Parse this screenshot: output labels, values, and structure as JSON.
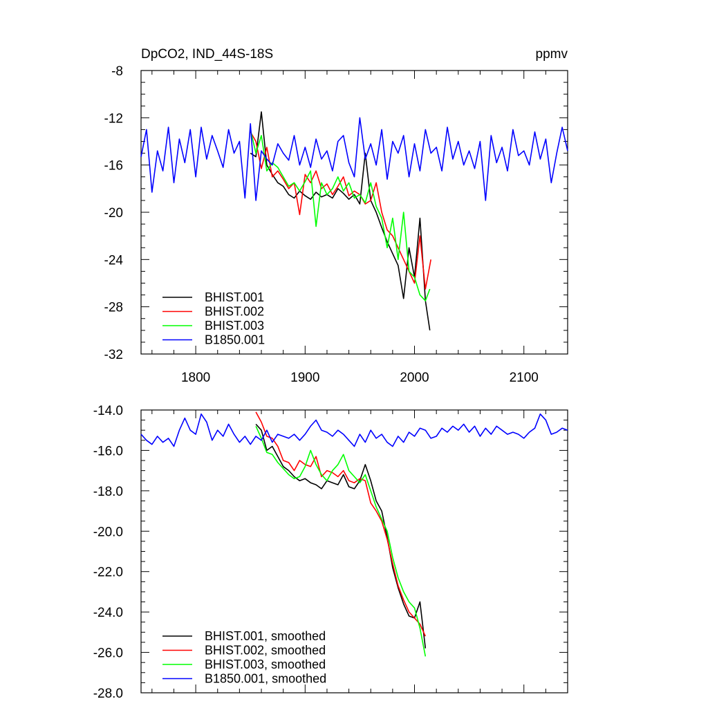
{
  "header": {
    "title": "DpCO2, IND_44S-18S",
    "units": "ppmv"
  },
  "chart_data": [
    {
      "type": "line",
      "title": "DpCO2, IND_44S-18S",
      "units": "ppmv",
      "xlim": [
        1750,
        2140
      ],
      "ylim": [
        -32,
        -8
      ],
      "yticks": [
        -8,
        -12,
        -16,
        -20,
        -24,
        -28,
        -32
      ],
      "ytick_labels": [
        "-8",
        "-12",
        "-16",
        "-20",
        "-24",
        "-28",
        "-32"
      ],
      "xticks": [
        1800,
        1900,
        2000,
        2100
      ],
      "xtick_labels": [
        "1800",
        "1900",
        "2000",
        "2100"
      ],
      "x_minor": 20,
      "y_minor": 1,
      "legend_position": "bottom-left",
      "series": [
        {
          "name": "BHIST.001",
          "color": "#000000",
          "x": [
            1850,
            1855,
            1860,
            1865,
            1870,
            1875,
            1880,
            1885,
            1890,
            1895,
            1900,
            1905,
            1910,
            1915,
            1920,
            1925,
            1930,
            1935,
            1940,
            1945,
            1950,
            1955,
            1960,
            1965,
            1970,
            1975,
            1980,
            1985,
            1990,
            1995,
            2000,
            2005,
            2010,
            2014
          ],
          "y": [
            -15.0,
            -15.3,
            -11.5,
            -16.0,
            -16.8,
            -17.5,
            -17.8,
            -18.5,
            -18.8,
            -18.2,
            -18.6,
            -18.9,
            -18.3,
            -18.7,
            -18.5,
            -18.8,
            -18.0,
            -18.4,
            -18.9,
            -18.5,
            -19.3,
            -15.0,
            -19.0,
            -20.0,
            -21.3,
            -22.5,
            -23.5,
            -24.5,
            -27.3,
            -23.0,
            -25.5,
            -20.5,
            -27.5,
            -30.0
          ]
        },
        {
          "name": "BHIST.002",
          "color": "#ff0000",
          "x": [
            1850,
            1855,
            1860,
            1865,
            1870,
            1875,
            1880,
            1885,
            1890,
            1895,
            1900,
            1905,
            1910,
            1915,
            1920,
            1925,
            1930,
            1935,
            1940,
            1945,
            1950,
            1955,
            1960,
            1965,
            1970,
            1975,
            1980,
            1985,
            1990,
            1995,
            2000,
            2005,
            2010,
            2015
          ],
          "y": [
            -13.2,
            -14.0,
            -16.3,
            -14.5,
            -17.0,
            -16.5,
            -17.2,
            -18.0,
            -17.5,
            -20.2,
            -16.8,
            -17.5,
            -16.5,
            -18.0,
            -17.6,
            -18.5,
            -17.8,
            -17.0,
            -18.6,
            -18.2,
            -18.5,
            -19.3,
            -19.0,
            -17.5,
            -20.0,
            -21.5,
            -22.0,
            -23.0,
            -24.0,
            -25.0,
            -26.0,
            -22.0,
            -26.5,
            -24.0
          ]
        },
        {
          "name": "BHIST.003",
          "color": "#00ff00",
          "x": [
            1850,
            1855,
            1860,
            1865,
            1870,
            1875,
            1880,
            1885,
            1890,
            1895,
            1900,
            1905,
            1910,
            1915,
            1920,
            1925,
            1930,
            1935,
            1940,
            1945,
            1950,
            1955,
            1960,
            1965,
            1970,
            1975,
            1980,
            1985,
            1990,
            1995,
            2000,
            2005,
            2010,
            2014
          ],
          "y": [
            -13.0,
            -15.0,
            -13.5,
            -16.5,
            -15.8,
            -16.2,
            -17.0,
            -17.8,
            -17.5,
            -18.2,
            -17.4,
            -16.5,
            -21.2,
            -17.5,
            -18.5,
            -18.0,
            -17.0,
            -18.2,
            -17.5,
            -18.8,
            -18.5,
            -19.2,
            -17.5,
            -19.5,
            -20.5,
            -23.0,
            -20.5,
            -24.0,
            -20.0,
            -25.0,
            -25.5,
            -27.0,
            -27.5,
            -26.5
          ]
        },
        {
          "name": "B1850.001",
          "color": "#0000ff",
          "x": [
            1750,
            1755,
            1760,
            1765,
            1770,
            1775,
            1780,
            1785,
            1790,
            1795,
            1800,
            1805,
            1810,
            1815,
            1820,
            1825,
            1830,
            1835,
            1840,
            1845,
            1850,
            1855,
            1860,
            1865,
            1870,
            1875,
            1880,
            1885,
            1890,
            1895,
            1900,
            1905,
            1910,
            1915,
            1920,
            1925,
            1930,
            1935,
            1940,
            1945,
            1950,
            1955,
            1960,
            1965,
            1970,
            1975,
            1980,
            1985,
            1990,
            1995,
            2000,
            2005,
            2010,
            2015,
            2020,
            2025,
            2030,
            2035,
            2040,
            2045,
            2050,
            2055,
            2060,
            2065,
            2070,
            2075,
            2080,
            2085,
            2090,
            2095,
            2100,
            2105,
            2110,
            2115,
            2120,
            2125,
            2130,
            2135,
            2140
          ],
          "y": [
            -15.3,
            -13.0,
            -18.3,
            -14.8,
            -16.5,
            -12.8,
            -17.5,
            -13.8,
            -15.8,
            -13.0,
            -17.0,
            -12.8,
            -15.5,
            -13.5,
            -14.8,
            -16.2,
            -13.0,
            -15.0,
            -14.0,
            -18.8,
            -12.5,
            -19.0,
            -14.8,
            -15.5,
            -16.0,
            -14.2,
            -15.0,
            -15.6,
            -13.5,
            -16.0,
            -14.5,
            -16.2,
            -13.8,
            -15.5,
            -14.8,
            -16.5,
            -14.0,
            -13.5,
            -15.8,
            -17.0,
            -12.0,
            -15.5,
            -14.2,
            -16.0,
            -13.0,
            -17.2,
            -14.0,
            -15.0,
            -13.5,
            -17.0,
            -14.2,
            -16.5,
            -13.0,
            -15.0,
            -14.5,
            -16.5,
            -12.8,
            -15.5,
            -14.0,
            -16.0,
            -14.8,
            -16.3,
            -14.0,
            -19.0,
            -13.5,
            -15.8,
            -14.5,
            -16.5,
            -13.0,
            -15.2,
            -14.8,
            -16.0,
            -13.2,
            -15.5,
            -13.8,
            -17.5,
            -15.0,
            -12.8,
            -14.8
          ]
        }
      ]
    },
    {
      "type": "line",
      "title": "",
      "xlim": [
        1750,
        2140
      ],
      "ylim": [
        -28.0,
        -14.0
      ],
      "yticks": [
        -14.0,
        -16.0,
        -18.0,
        -20.0,
        -22.0,
        -24.0,
        -26.0,
        -28.0
      ],
      "ytick_labels": [
        "-14.0",
        "-16.0",
        "-18.0",
        "-20.0",
        "-22.0",
        "-24.0",
        "-26.0",
        "-28.0"
      ],
      "xticks": [
        1800,
        1900,
        2000,
        2100
      ],
      "x_minor": 20,
      "y_minor": 0.5,
      "legend_position": "bottom-left",
      "series": [
        {
          "name": "BHIST.001, smoothed",
          "color": "#000000",
          "x": [
            1855,
            1860,
            1865,
            1870,
            1875,
            1880,
            1885,
            1890,
            1895,
            1900,
            1905,
            1910,
            1915,
            1920,
            1925,
            1930,
            1935,
            1940,
            1945,
            1950,
            1955,
            1960,
            1965,
            1970,
            1975,
            1980,
            1985,
            1990,
            1995,
            2000,
            2005,
            2010
          ],
          "y": [
            -14.7,
            -15.0,
            -16.0,
            -15.8,
            -16.3,
            -16.8,
            -17.0,
            -17.3,
            -17.5,
            -17.4,
            -17.6,
            -17.7,
            -17.9,
            -17.5,
            -17.6,
            -17.7,
            -17.2,
            -17.8,
            -17.9,
            -17.5,
            -16.7,
            -17.5,
            -18.5,
            -19.0,
            -20.3,
            -21.8,
            -22.8,
            -23.6,
            -24.2,
            -24.3,
            -23.5,
            -25.8
          ]
        },
        {
          "name": "BHIST.002, smoothed",
          "color": "#ff0000",
          "x": [
            1855,
            1860,
            1865,
            1870,
            1875,
            1880,
            1885,
            1890,
            1895,
            1900,
            1905,
            1910,
            1915,
            1920,
            1925,
            1930,
            1935,
            1940,
            1945,
            1950,
            1955,
            1960,
            1965,
            1970,
            1975,
            1980,
            1985,
            1990,
            1995,
            2000,
            2005,
            2010
          ],
          "y": [
            -14.1,
            -14.6,
            -15.3,
            -15.4,
            -15.8,
            -16.5,
            -16.6,
            -17.0,
            -16.5,
            -16.7,
            -16.8,
            -16.3,
            -17.3,
            -17.0,
            -17.1,
            -17.3,
            -17.0,
            -17.5,
            -17.6,
            -17.4,
            -17.5,
            -18.6,
            -19.0,
            -19.5,
            -20.4,
            -21.6,
            -22.7,
            -23.4,
            -24.0,
            -24.3,
            -24.6,
            -25.2
          ]
        },
        {
          "name": "BHIST.003, smoothed",
          "color": "#00ff00",
          "x": [
            1855,
            1860,
            1865,
            1870,
            1875,
            1880,
            1885,
            1890,
            1895,
            1900,
            1905,
            1910,
            1915,
            1920,
            1925,
            1930,
            1935,
            1940,
            1945,
            1950,
            1955,
            1960,
            1965,
            1970,
            1975,
            1980,
            1985,
            1990,
            1995,
            2000,
            2005,
            2010
          ],
          "y": [
            -14.8,
            -15.4,
            -16.1,
            -16.2,
            -16.6,
            -16.9,
            -17.2,
            -17.4,
            -17.3,
            -16.8,
            -16.0,
            -16.7,
            -17.2,
            -17.5,
            -17.0,
            -16.7,
            -16.2,
            -17.0,
            -17.3,
            -17.6,
            -17.2,
            -18.0,
            -18.8,
            -19.4,
            -20.0,
            -21.3,
            -22.3,
            -23.0,
            -23.5,
            -23.8,
            -24.8,
            -26.2
          ]
        },
        {
          "name": "B1850.001, smoothed",
          "color": "#0000ff",
          "x": [
            1750,
            1755,
            1760,
            1765,
            1770,
            1775,
            1780,
            1785,
            1790,
            1795,
            1800,
            1805,
            1810,
            1815,
            1820,
            1825,
            1830,
            1835,
            1840,
            1845,
            1850,
            1855,
            1860,
            1865,
            1870,
            1875,
            1880,
            1885,
            1890,
            1895,
            1900,
            1905,
            1910,
            1915,
            1920,
            1925,
            1930,
            1935,
            1940,
            1945,
            1950,
            1955,
            1960,
            1965,
            1970,
            1975,
            1980,
            1985,
            1990,
            1995,
            2000,
            2005,
            2010,
            2015,
            2020,
            2025,
            2030,
            2035,
            2040,
            2045,
            2050,
            2055,
            2060,
            2065,
            2070,
            2075,
            2080,
            2085,
            2090,
            2095,
            2100,
            2105,
            2110,
            2115,
            2120,
            2125,
            2130,
            2135,
            2140
          ],
          "y": [
            -15.2,
            -15.5,
            -15.7,
            -15.3,
            -15.6,
            -15.4,
            -15.8,
            -15.0,
            -14.4,
            -15.0,
            -15.2,
            -14.2,
            -14.6,
            -15.5,
            -15.0,
            -15.3,
            -14.7,
            -15.2,
            -15.6,
            -15.3,
            -15.7,
            -15.3,
            -15.5,
            -15.0,
            -15.6,
            -15.2,
            -15.3,
            -15.4,
            -15.2,
            -15.5,
            -15.2,
            -14.8,
            -14.5,
            -15.0,
            -15.1,
            -15.3,
            -15.0,
            -15.2,
            -15.5,
            -15.8,
            -15.2,
            -15.6,
            -15.0,
            -15.4,
            -15.2,
            -15.6,
            -15.8,
            -15.3,
            -15.6,
            -15.1,
            -15.3,
            -14.9,
            -15.0,
            -15.4,
            -15.3,
            -14.9,
            -15.1,
            -14.8,
            -15.0,
            -14.7,
            -15.1,
            -14.8,
            -15.3,
            -14.9,
            -15.2,
            -14.8,
            -15.0,
            -15.2,
            -15.1,
            -15.2,
            -15.4,
            -15.1,
            -14.9,
            -14.2,
            -14.5,
            -15.2,
            -15.1,
            -14.9,
            -15.0
          ]
        }
      ]
    }
  ]
}
